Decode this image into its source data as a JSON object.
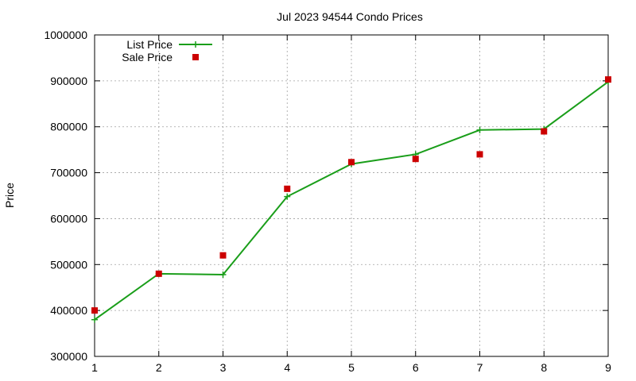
{
  "chart_data": {
    "type": "line",
    "title": "Jul 2023 94544 Condo Prices",
    "xlabel": "",
    "ylabel": "Price",
    "x": [
      1,
      2,
      3,
      4,
      5,
      6,
      7,
      8,
      9
    ],
    "xlim": [
      1,
      9
    ],
    "ylim": [
      300000,
      1000000
    ],
    "x_ticks": [
      "1",
      "2",
      "3",
      "4",
      "5",
      "6",
      "7",
      "8",
      "9"
    ],
    "y_ticks": [
      "300000",
      "400000",
      "500000",
      "600000",
      "700000",
      "800000",
      "900000",
      "1000000"
    ],
    "grid": true,
    "legend_position": "top-left",
    "series": [
      {
        "name": "List Price",
        "style": "line-with-plus-markers",
        "color": "#1a9e1a",
        "values": [
          380000,
          480000,
          478000,
          648000,
          719000,
          740000,
          793000,
          795000,
          898000
        ]
      },
      {
        "name": "Sale Price",
        "style": "square-markers",
        "color": "#cc0000",
        "values": [
          400000,
          480000,
          520000,
          665000,
          723000,
          730000,
          740000,
          790000,
          903000
        ]
      }
    ]
  }
}
